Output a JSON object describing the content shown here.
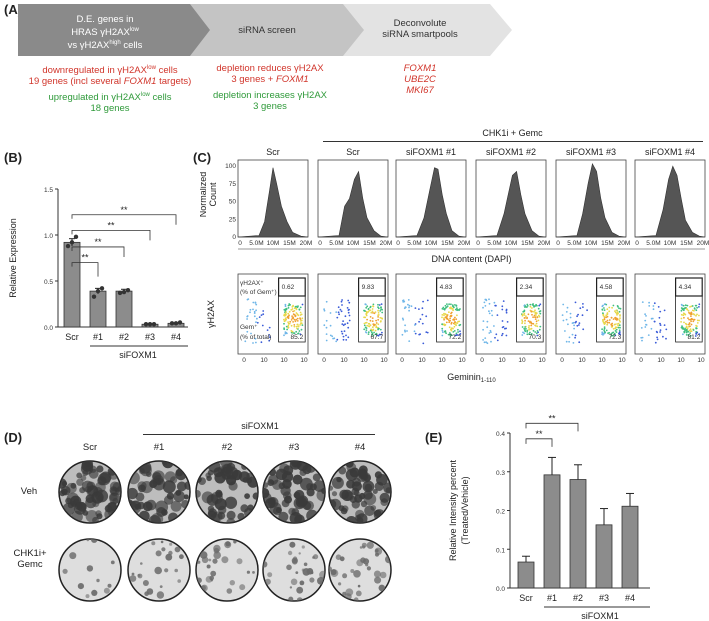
{
  "panel_a": {
    "letter": "(A)",
    "step1_line1": "D.E. genes in",
    "step1_line2": "HRAS γH2AX",
    "step1_sup_a": "low",
    "step1_line3": "vs γH2AX",
    "step1_sup_b": "high",
    "step1_line3_end": " cells",
    "step2": "siRNA screen",
    "step3_line1": "Deconvolute",
    "step3_line2": "siRNA smartpools",
    "down_line1_pre": "downregulated in γH2AX",
    "down_sup": "low",
    "down_line1_post": " cells",
    "down_line2_pre": "19 genes (incl several ",
    "down_line2_it": "FOXM1",
    "down_line2_post": " targets)",
    "up_line1_pre": "upregulated in γH2AX",
    "up_sup": "low",
    "up_line1_post": " cells",
    "up_line2": "18 genes",
    "dep_red_line1": "depletion reduces γH2AX",
    "dep_red_line2_pre": "3 genes + ",
    "dep_red_line2_it": "FOXM1",
    "dep_green_line1": "depletion increases γH2AX",
    "dep_green_line2": "3 genes",
    "genes": [
      "FOXM1",
      "UBE2C",
      "MKI67"
    ]
  },
  "panel_b": {
    "letter": "(B)",
    "chart_data": {
      "type": "bar",
      "categories": [
        "Scr",
        "#1",
        "#2",
        "#3",
        "#4"
      ],
      "values": [
        0.92,
        0.39,
        0.39,
        0.03,
        0.04
      ],
      "errors": [
        0.04,
        0.03,
        0.02,
        0.005,
        0.005
      ],
      "points": [
        [
          0.88,
          0.92,
          0.98
        ],
        [
          0.33,
          0.39,
          0.42
        ],
        [
          0.37,
          0.38,
          0.4
        ],
        [
          0.03,
          0.03,
          0.03
        ],
        [
          0.04,
          0.04,
          0.05
        ]
      ],
      "ylabel": "Relative Expression",
      "group_label": "siFOXM1",
      "ylim": [
        0,
        1.5
      ],
      "yticks": [
        "0.0",
        "0.5",
        "1.0",
        "1.5"
      ],
      "significance": "**"
    }
  },
  "panel_c": {
    "letter": "(C)",
    "header": "CHK1i + Gemc",
    "conditions": [
      "Scr",
      "Scr",
      "siFOXM1 #1",
      "siFOXM1 #2",
      "siFOXM1 #3",
      "siFOXM1 #4"
    ],
    "hist_ylabel_1": "Normalized",
    "hist_ylabel_2": "Count",
    "hist_yticks": [
      "0",
      "25",
      "50",
      "75",
      "100"
    ],
    "hist_xticks": [
      "0",
      "5.0M",
      "10M",
      "15M",
      "20M"
    ],
    "dna_label": "DNA content (DAPI)",
    "scatter_ylabel": "γH2AX",
    "scatter_xlabel": "Geminin",
    "scatter_xlabel_sub": "1-110",
    "gate_top_label_1": "γH2AX⁺",
    "gate_top_label_2": "(% of Gem⁺)",
    "gate_bottom_label_1": "Gem⁺",
    "gate_bottom_label_2": "(% of total)",
    "top_pct": [
      "0.62",
      "9.83",
      "4.83",
      "2.34",
      "4.58",
      "4.34"
    ],
    "bottom_pct": [
      "85.2",
      "67.7",
      "72.2",
      "70.3",
      "72.3",
      "81.2"
    ],
    "scatter_xticks": [
      "0",
      "10",
      "10",
      "10"
    ]
  },
  "panel_d": {
    "letter": "(D)",
    "group_label": "siFOXM1",
    "columns": [
      "Scr",
      "#1",
      "#2",
      "#3",
      "#4"
    ],
    "rows": [
      "Veh",
      "CHK1i+",
      "Gemc"
    ]
  },
  "panel_e": {
    "letter": "(E)",
    "chart_data": {
      "type": "bar",
      "categories": [
        "Scr",
        "#1",
        "#2",
        "#3",
        "#4"
      ],
      "values": [
        0.067,
        0.292,
        0.28,
        0.163,
        0.211
      ],
      "errors": [
        0.015,
        0.045,
        0.038,
        0.042,
        0.033
      ],
      "ylabel_1": "Relative Intensity percent",
      "ylabel_2": "(Treated/Vehicle)",
      "group_label": "siFOXM1",
      "ylim": [
        0,
        0.4
      ],
      "yticks": [
        "0.0",
        "0.1",
        "0.2",
        "0.3",
        "0.4"
      ],
      "significance": "**"
    }
  }
}
